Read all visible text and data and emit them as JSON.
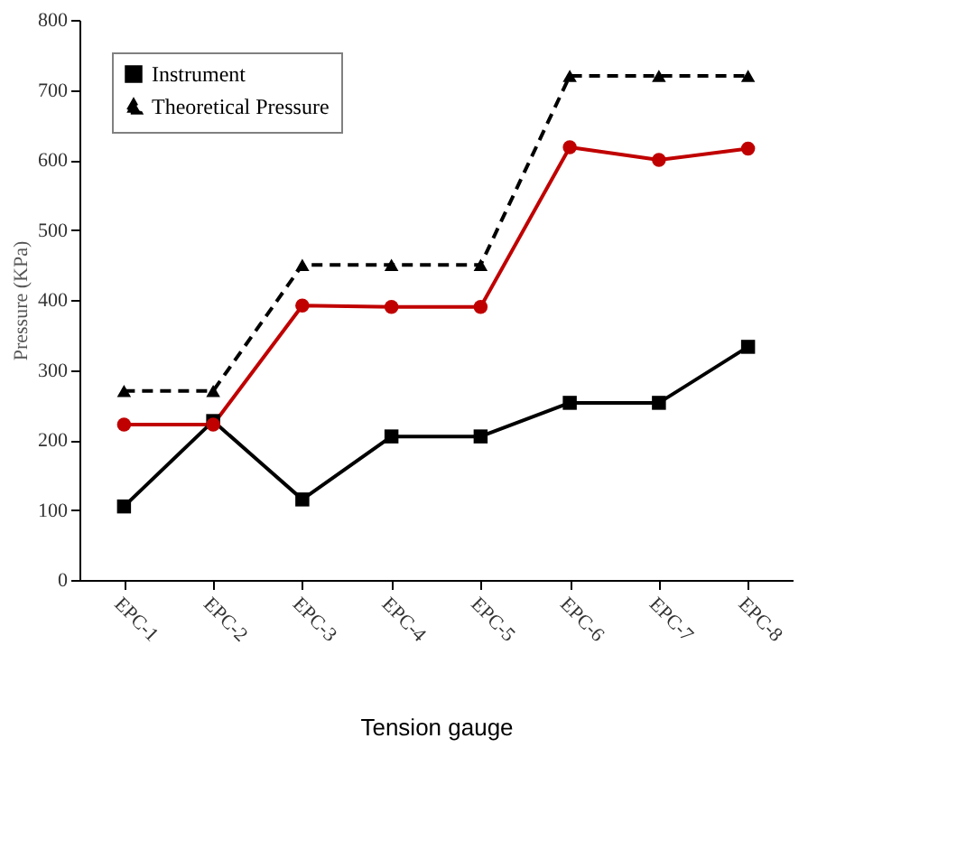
{
  "chart_data": {
    "type": "line",
    "xlabel": "Tension gauge",
    "ylabel": "Pressure (KPa)",
    "categories": [
      "EPC-1",
      "EPC-2",
      "EPC-3",
      "EPC-4",
      "EPC-5",
      "EPC-6",
      "EPC-7",
      "EPC-8"
    ],
    "series": [
      {
        "color": "#c00000",
        "marker": "circle",
        "line_style": "solid",
        "values": [
          222,
          222,
          392,
          390,
          390,
          618,
          600,
          616
        ]
      },
      {
        "name": "Instrument",
        "color": "#000000",
        "marker": "square",
        "line_style": "solid",
        "values": [
          105,
          227,
          115,
          205,
          205,
          253,
          253,
          333
        ]
      },
      {
        "name": "Theoretical Pressure",
        "color": "#000000",
        "marker": "triangle",
        "line_style": "dashed",
        "values": [
          270,
          270,
          450,
          450,
          450,
          720,
          720,
          720
        ]
      }
    ],
    "ylim": [
      0,
      800
    ],
    "yticks": [
      0,
      100,
      200,
      300,
      400,
      500,
      600,
      700,
      800
    ],
    "grid": false,
    "legend": "top left"
  }
}
